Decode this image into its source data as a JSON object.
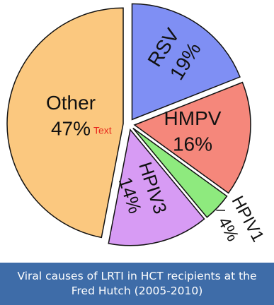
{
  "chart_data": {
    "type": "pie",
    "categories": [
      "RSV",
      "HMPV",
      "HPIV1",
      "HPIV3",
      "Other"
    ],
    "values": [
      19,
      16,
      4,
      14,
      47
    ],
    "value_labels": [
      "19%",
      "16%",
      "4%",
      "14%",
      "47%"
    ],
    "colors": [
      "#7f8ff4",
      "#f5877b",
      "#8eea7e",
      "#d79bf4",
      "#fbc87f"
    ],
    "annotation": "Text",
    "title": "Viral causes of LRTI in HCT recipients at the Fred Hutch (2005-2010)"
  }
}
